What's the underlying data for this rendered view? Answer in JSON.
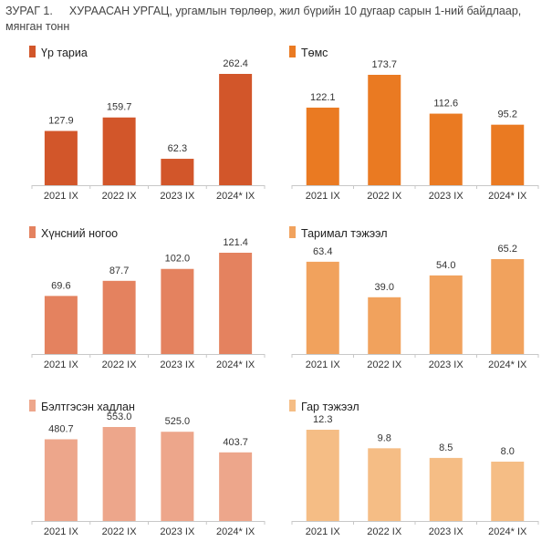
{
  "figure": {
    "number": "ЗУРАГ 1.",
    "title": "ХУРААСАН УРГАЦ, ургамлын төрлөөр, жил бүрийн 10 дугаар сарын 1-ний байдлаар, мянган тонн"
  },
  "chart_data": [
    {
      "type": "bar",
      "title": "Үр тариа",
      "categories": [
        "2021 IX",
        "2022 IX",
        "2023 IX",
        "2024* IX"
      ],
      "values": [
        127.9,
        159.7,
        62.3,
        262.4
      ],
      "value_labels": [
        "127.9",
        "159.7",
        "62.3",
        "262.4"
      ],
      "color": "#d2562a"
    },
    {
      "type": "bar",
      "title": "Төмс",
      "categories": [
        "2021 IX",
        "2022 IX",
        "2023 IX",
        "2024* IX"
      ],
      "values": [
        122.1,
        173.7,
        112.6,
        95.2
      ],
      "value_labels": [
        "122.1",
        "173.7",
        "112.6",
        "95.2"
      ],
      "color": "#ea7a22"
    },
    {
      "type": "bar",
      "title": "Хүнсний ногоо",
      "categories": [
        "2021 IX",
        "2022 IX",
        "2023 IX",
        "2024* IX"
      ],
      "values": [
        69.6,
        87.7,
        102.0,
        121.4
      ],
      "value_labels": [
        "69.6",
        "87.7",
        "102.0",
        "121.4"
      ],
      "color": "#e4825f"
    },
    {
      "type": "bar",
      "title": "Таримал тэжээл",
      "categories": [
        "2021 IX",
        "2022 IX",
        "2023 IX",
        "2024* IX"
      ],
      "values": [
        63.4,
        39.0,
        54.0,
        65.2
      ],
      "value_labels": [
        "63.4",
        "39.0",
        "54.0",
        "65.2"
      ],
      "color": "#f1a25d"
    },
    {
      "type": "bar",
      "title": "Бэлтгэсэн хадлан",
      "categories": [
        "2021 IX",
        "2022 IX",
        "2023 IX",
        "2024* IX"
      ],
      "values": [
        480.7,
        553.0,
        525.0,
        403.7
      ],
      "value_labels": [
        "480.7",
        "553.0",
        "525.0",
        "403.7"
      ],
      "color": "#eda68b"
    },
    {
      "type": "bar",
      "title": "Гар тэжээл",
      "categories": [
        "2021 IX",
        "2022 IX",
        "2023 IX",
        "2024* IX"
      ],
      "values": [
        12.3,
        9.8,
        8.5,
        8.0
      ],
      "value_labels": [
        "12.3",
        "9.8",
        "8.5",
        "8.0"
      ],
      "color": "#f5bd85"
    }
  ]
}
